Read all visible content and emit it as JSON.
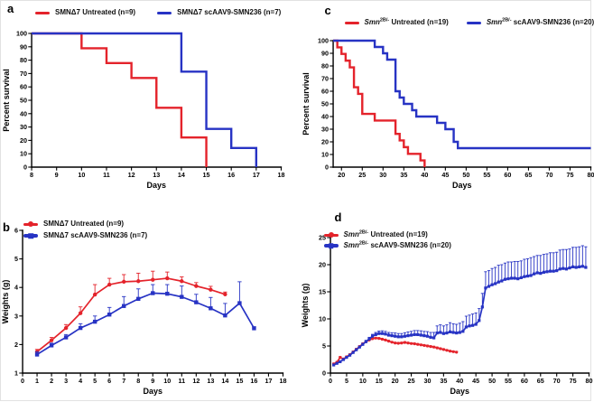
{
  "panels": [
    {
      "letter": "a",
      "legend": [
        {
          "color": "#e4232b",
          "pre": "SMNΔ7 Untreated (n=9)",
          "italic": "",
          "sup": "",
          "post": ""
        },
        {
          "color": "#2733c4",
          "pre": "SMNΔ7 scAAV9-SMN236 (n=7)",
          "italic": "",
          "sup": "",
          "post": ""
        }
      ]
    },
    {
      "letter": "c",
      "legend": [
        {
          "color": "#e4232b",
          "pre": "",
          "italic": "Smn",
          "sup": "2B/-",
          "post": " Untreated (n=19)"
        },
        {
          "color": "#2733c4",
          "pre": "",
          "italic": "Smn",
          "sup": "2B/-",
          "post": " scAAV9-SMN236 (n=20)"
        }
      ]
    },
    {
      "letter": "b",
      "legend": [
        {
          "color": "#e4232b",
          "pre": "SMNΔ7 Untreated (n=9)",
          "italic": "",
          "sup": "",
          "post": ""
        },
        {
          "color": "#2733c4",
          "pre": "SMNΔ7 scAAV9-SMN236 (n=7)",
          "italic": "",
          "sup": "",
          "post": ""
        }
      ]
    },
    {
      "letter": "d",
      "legend": [
        {
          "color": "#e4232b",
          "pre": "",
          "italic": "Smn",
          "sup": "2B/-",
          "post": " Untreated (n=19)"
        },
        {
          "color": "#2733c4",
          "pre": "",
          "italic": "Smn",
          "sup": "2B/-",
          "post": " scAAV9-SMN236 (n=20)"
        }
      ]
    }
  ],
  "colors": {
    "untreated_red": "#e4232b",
    "treated_blue": "#2733c4"
  },
  "chart_data": [
    {
      "panel": "a",
      "type": "survival",
      "xlabel": "Days",
      "ylabel": "Percent survival",
      "xlim": [
        8,
        18
      ],
      "ylim": [
        0,
        100
      ],
      "xticks": [
        8,
        9,
        10,
        11,
        12,
        13,
        14,
        15,
        16,
        17,
        18
      ],
      "yticks": [
        0,
        10,
        20,
        30,
        40,
        50,
        60,
        70,
        80,
        90,
        100
      ],
      "series": [
        {
          "name": "SMNΔ7 Untreated (n=9)",
          "color": "#e4232b",
          "steps": [
            [
              10,
              88.9
            ],
            [
              11,
              77.8
            ],
            [
              12,
              66.7
            ],
            [
              13,
              44.4
            ],
            [
              14,
              22.2
            ],
            [
              15,
              0
            ]
          ],
          "flat_to_end": false
        },
        {
          "name": "SMNΔ7 scAAV9-SMN236 (n=7)",
          "color": "#2733c4",
          "steps": [
            [
              14,
              71.4
            ],
            [
              15,
              28.6
            ],
            [
              16,
              14.3
            ],
            [
              17,
              0
            ]
          ],
          "flat_to_end": false
        }
      ]
    },
    {
      "panel": "c",
      "type": "survival",
      "xlabel": "Days",
      "ylabel": "Percent survival",
      "xlim": [
        18,
        80
      ],
      "ylim": [
        0,
        100
      ],
      "xticks": [
        20,
        25,
        30,
        35,
        40,
        45,
        50,
        55,
        60,
        65,
        70,
        75,
        80
      ],
      "yticks": [
        0,
        10,
        20,
        30,
        40,
        50,
        60,
        70,
        80,
        90,
        100
      ],
      "series": [
        {
          "name": "Smn2B/- Untreated (n=19)",
          "color": "#e4232b",
          "steps": [
            [
              19,
              94.7
            ],
            [
              20,
              89.5
            ],
            [
              21,
              84.2
            ],
            [
              22,
              78.9
            ],
            [
              23,
              63.2
            ],
            [
              24,
              57.9
            ],
            [
              25,
              42.1
            ],
            [
              28,
              36.8
            ],
            [
              33,
              26.3
            ],
            [
              34,
              21.1
            ],
            [
              35,
              15.8
            ],
            [
              36,
              10.5
            ],
            [
              39,
              5.3
            ],
            [
              40,
              0
            ]
          ],
          "flat_to_end": false
        },
        {
          "name": "Smn2B/- scAAV9-SMN236 (n=20)",
          "color": "#2733c4",
          "steps": [
            [
              28,
              95
            ],
            [
              30,
              90
            ],
            [
              31,
              85
            ],
            [
              33,
              60
            ],
            [
              34,
              55
            ],
            [
              35,
              50
            ],
            [
              37,
              45
            ],
            [
              38,
              40
            ],
            [
              43,
              35
            ],
            [
              45,
              30
            ],
            [
              47,
              20
            ],
            [
              48,
              15
            ]
          ],
          "flat_to_end": true
        }
      ]
    },
    {
      "panel": "b",
      "type": "weights",
      "xlabel": "Days",
      "ylabel": "Weights (g)",
      "xlim": [
        0,
        18
      ],
      "ylim": [
        1,
        6
      ],
      "xticks": [
        0,
        1,
        2,
        3,
        4,
        5,
        6,
        7,
        8,
        9,
        10,
        11,
        12,
        13,
        14,
        15,
        16,
        17,
        18
      ],
      "yticks": [
        1,
        2,
        3,
        4,
        5,
        6
      ],
      "series": [
        {
          "name": "SMNΔ7 Untreated (n=9)",
          "color": "#e4232b",
          "marker": "circle",
          "x_start": 1,
          "y": [
            1.75,
            2.15,
            2.58,
            3.1,
            3.75,
            4.1,
            4.2,
            4.22,
            4.27,
            4.32,
            4.22,
            4.05,
            3.92,
            3.76
          ],
          "err": [
            0.08,
            0.1,
            0.12,
            0.22,
            0.35,
            0.22,
            0.25,
            0.28,
            0.3,
            0.22,
            0.15,
            0.12,
            0.12,
            0.08
          ]
        },
        {
          "name": "SMNΔ7 scAAV9-SMN236 (n=7)",
          "color": "#2733c4",
          "marker": "square",
          "x_start": 1,
          "y": [
            1.65,
            1.97,
            2.25,
            2.58,
            2.8,
            3.05,
            3.35,
            3.6,
            3.8,
            3.78,
            3.67,
            3.48,
            3.27,
            3.02,
            3.45,
            2.57
          ],
          "err": [
            0.1,
            0.08,
            0.1,
            0.15,
            0.2,
            0.25,
            0.33,
            0.35,
            0.3,
            0.32,
            0.38,
            0.28,
            0.38,
            0.42,
            0.75,
            0.05
          ]
        }
      ]
    },
    {
      "panel": "d",
      "type": "weights",
      "xlabel": "Days",
      "ylabel": "Weights (g)",
      "xlim": [
        0,
        80
      ],
      "ylim": [
        0,
        25
      ],
      "xticks": [
        0,
        5,
        10,
        15,
        20,
        25,
        30,
        35,
        40,
        45,
        50,
        55,
        60,
        65,
        70,
        75,
        80
      ],
      "yticks": [
        0,
        5,
        10,
        15,
        20,
        25
      ],
      "series": [
        {
          "name": "Smn2B/- Untreated (n=19)",
          "color": "#e4232b",
          "marker": "circle",
          "x_start": 1,
          "y": [
            1.7,
            2.0,
            2.9,
            2.6,
            3.0,
            3.4,
            3.9,
            4.4,
            4.9,
            5.4,
            5.8,
            6.1,
            6.35,
            6.45,
            6.4,
            6.25,
            6.1,
            5.9,
            5.7,
            5.55,
            5.5,
            5.55,
            5.65,
            5.55,
            5.45,
            5.4,
            5.3,
            5.2,
            5.1,
            5.0,
            4.9,
            4.8,
            4.65,
            4.5,
            4.35,
            4.2,
            4.05,
            3.95,
            3.85
          ],
          "err": 0.15
        },
        {
          "name": "Smn2B/- scAAV9-SMN236 (n=20)",
          "color": "#2733c4",
          "marker": "square",
          "x_start": 1,
          "y": [
            1.5,
            1.8,
            2.1,
            2.5,
            2.9,
            3.3,
            3.8,
            4.3,
            4.8,
            5.3,
            5.8,
            6.3,
            6.8,
            7.1,
            7.3,
            7.3,
            7.2,
            7.0,
            6.9,
            6.8,
            6.7,
            6.7,
            6.8,
            6.9,
            7.0,
            7.1,
            7.1,
            7.0,
            6.9,
            6.8,
            6.6,
            6.5,
            7.4,
            7.5,
            7.3,
            7.4,
            7.6,
            7.5,
            7.4,
            7.5,
            7.7,
            8.5,
            8.7,
            8.8,
            9.0,
            9.7,
            12.2,
            15.7,
            16.0,
            16.3,
            16.5,
            16.8,
            17.0,
            17.3,
            17.4,
            17.5,
            17.5,
            17.4,
            17.6,
            17.8,
            17.9,
            18.0,
            18.3,
            18.5,
            18.4,
            18.6,
            18.7,
            18.8,
            18.8,
            18.9,
            19.2,
            19.3,
            19.2,
            19.4,
            19.6,
            19.5,
            19.6,
            19.7,
            19.5
          ],
          "err": [
            0.05,
            0.05,
            0.08,
            0.08,
            0.1,
            0.1,
            0.12,
            0.15,
            0.15,
            0.2,
            0.25,
            0.3,
            0.35,
            0.4,
            0.45,
            0.5,
            0.5,
            0.5,
            0.55,
            0.6,
            0.6,
            0.6,
            0.65,
            0.7,
            0.7,
            0.75,
            0.75,
            0.8,
            0.8,
            0.85,
            0.9,
            1.0,
            1.3,
            1.4,
            1.4,
            1.5,
            1.7,
            1.6,
            1.6,
            1.7,
            1.8,
            2.0,
            2.0,
            2.1,
            2.1,
            2.2,
            2.5,
            3.0,
            2.9,
            3.0,
            3.0,
            3.1,
            3.0,
            3.0,
            3.1,
            3.0,
            3.1,
            3.2,
            3.1,
            3.2,
            3.2,
            3.3,
            3.2,
            3.2,
            3.3,
            3.3,
            3.3,
            3.4,
            3.4,
            3.4,
            3.5,
            3.5,
            3.6,
            3.5,
            3.6,
            3.7,
            3.7,
            3.8,
            3.8
          ]
        }
      ]
    }
  ]
}
